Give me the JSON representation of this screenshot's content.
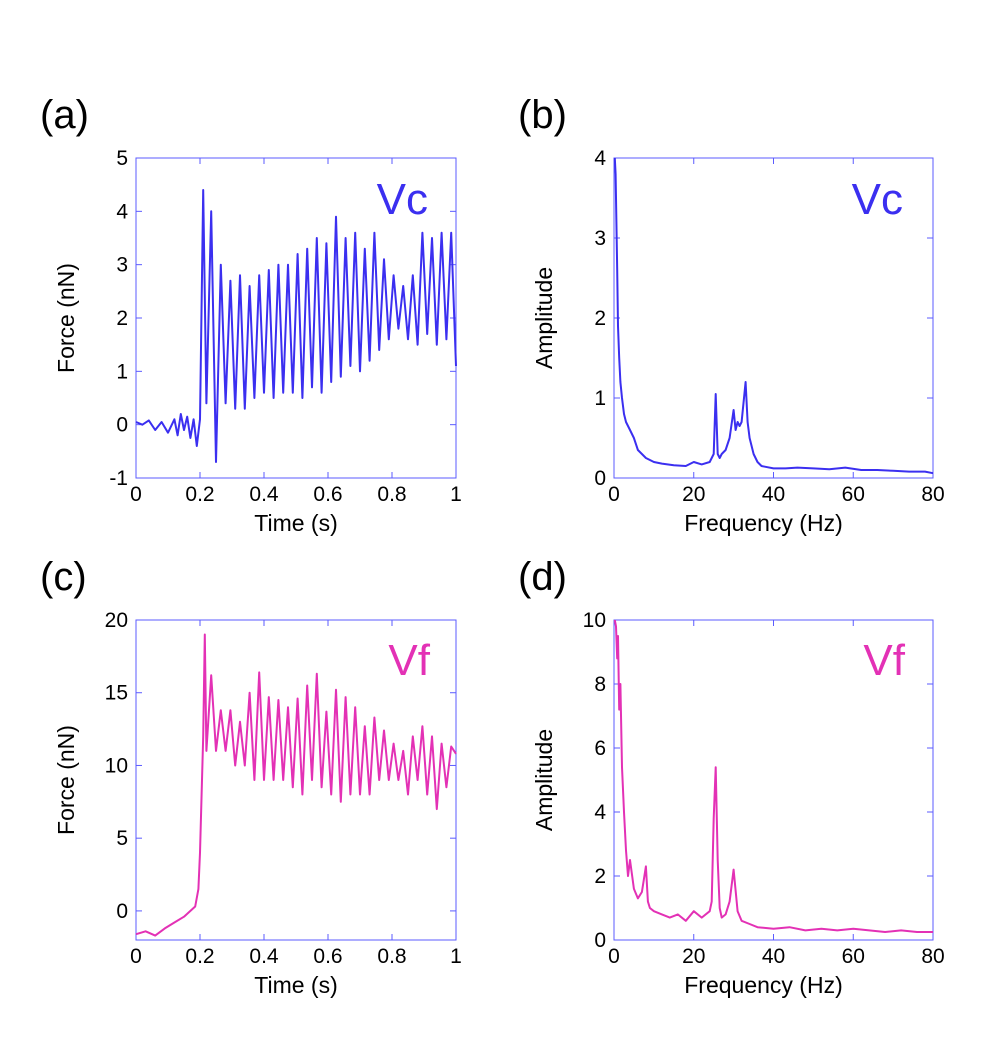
{
  "chart_data": [
    {
      "id": "a",
      "panel_label": "(a)",
      "type": "line",
      "color": "#3b2ff0",
      "tag": "Vc",
      "xlabel": "Time (s)",
      "ylabel": "Force (nN)",
      "xlim": [
        0,
        1
      ],
      "ylim": [
        -1,
        5
      ],
      "xticks": [
        0,
        0.2,
        0.4,
        0.6,
        0.8,
        1
      ],
      "xtick_labels": [
        "0",
        "0.2",
        "0.4",
        "0.6",
        "0.8",
        "1"
      ],
      "yticks": [
        -1,
        0,
        1,
        2,
        3,
        4,
        5
      ],
      "ytick_labels": [
        "-1",
        "0",
        "1",
        "2",
        "3",
        "4",
        "5"
      ],
      "x": [
        0,
        0.02,
        0.04,
        0.06,
        0.08,
        0.1,
        0.12,
        0.13,
        0.14,
        0.15,
        0.16,
        0.17,
        0.18,
        0.19,
        0.2,
        0.21,
        0.22,
        0.235,
        0.25,
        0.265,
        0.28,
        0.295,
        0.31,
        0.325,
        0.34,
        0.355,
        0.37,
        0.385,
        0.4,
        0.415,
        0.43,
        0.445,
        0.46,
        0.475,
        0.49,
        0.505,
        0.52,
        0.535,
        0.55,
        0.565,
        0.58,
        0.595,
        0.61,
        0.625,
        0.64,
        0.655,
        0.67,
        0.685,
        0.7,
        0.715,
        0.73,
        0.745,
        0.76,
        0.775,
        0.79,
        0.805,
        0.82,
        0.835,
        0.85,
        0.865,
        0.88,
        0.895,
        0.91,
        0.925,
        0.94,
        0.955,
        0.97,
        0.985,
        1.0
      ],
      "values": [
        0.05,
        0.0,
        0.08,
        -0.1,
        0.05,
        -0.15,
        0.1,
        -0.2,
        0.2,
        -0.1,
        0.15,
        -0.25,
        0.1,
        -0.4,
        0.1,
        4.4,
        0.4,
        4.0,
        -0.7,
        3.0,
        0.4,
        2.7,
        0.3,
        2.8,
        0.3,
        2.6,
        0.5,
        2.8,
        0.6,
        2.9,
        0.5,
        3.0,
        0.6,
        3.0,
        0.6,
        3.2,
        0.5,
        3.3,
        0.7,
        3.5,
        0.6,
        3.4,
        0.8,
        3.9,
        0.9,
        3.5,
        1.1,
        3.6,
        1.0,
        3.3,
        1.2,
        3.6,
        1.4,
        3.1,
        1.6,
        2.8,
        1.8,
        2.6,
        1.6,
        2.8,
        1.5,
        3.6,
        1.7,
        3.5,
        1.5,
        3.6,
        1.6,
        3.6,
        1.1
      ]
    },
    {
      "id": "b",
      "panel_label": "(b)",
      "type": "line",
      "color": "#3b2ff0",
      "tag": "Vc",
      "xlabel": "Frequency (Hz)",
      "ylabel": "Amplitude",
      "xlim": [
        0,
        80
      ],
      "ylim": [
        0,
        4
      ],
      "xticks": [
        0,
        20,
        40,
        60,
        80
      ],
      "xtick_labels": [
        "0",
        "20",
        "40",
        "60",
        "80"
      ],
      "yticks": [
        0,
        1,
        2,
        3,
        4
      ],
      "ytick_labels": [
        "0",
        "1",
        "2",
        "3",
        "4"
      ],
      "x": [
        0.2,
        0.4,
        0.6,
        0.8,
        1.0,
        1.3,
        1.6,
        2.0,
        2.5,
        3,
        4,
        5,
        6,
        8,
        10,
        12,
        15,
        18,
        20,
        22,
        24,
        25,
        25.5,
        26,
        26.5,
        27,
        28,
        29,
        30,
        30.5,
        31,
        31.5,
        32,
        32.5,
        33,
        33.5,
        34,
        35,
        36,
        37,
        38,
        40,
        43,
        46,
        50,
        54,
        58,
        62,
        66,
        70,
        74,
        78,
        80
      ],
      "values": [
        4.0,
        3.8,
        3.2,
        2.6,
        1.9,
        1.5,
        1.2,
        1.0,
        0.8,
        0.7,
        0.6,
        0.5,
        0.35,
        0.25,
        0.2,
        0.18,
        0.16,
        0.15,
        0.2,
        0.17,
        0.2,
        0.3,
        1.05,
        0.3,
        0.25,
        0.3,
        0.35,
        0.5,
        0.85,
        0.6,
        0.7,
        0.65,
        0.7,
        0.95,
        1.2,
        0.7,
        0.5,
        0.3,
        0.2,
        0.15,
        0.14,
        0.12,
        0.12,
        0.13,
        0.12,
        0.11,
        0.13,
        0.1,
        0.1,
        0.09,
        0.08,
        0.08,
        0.06
      ]
    },
    {
      "id": "c",
      "panel_label": "(c)",
      "type": "line",
      "color": "#e331b5",
      "tag": "Vf",
      "xlabel": "Time (s)",
      "ylabel": "Force (nN)",
      "xlim": [
        0,
        1
      ],
      "ylim": [
        -2,
        20
      ],
      "xticks": [
        0,
        0.2,
        0.4,
        0.6,
        0.8,
        1
      ],
      "xtick_labels": [
        "0",
        "0.2",
        "0.4",
        "0.6",
        "0.8",
        "1"
      ],
      "yticks": [
        0,
        5,
        10,
        15,
        20
      ],
      "ytick_labels": [
        "0",
        "5",
        "10",
        "15",
        "20"
      ],
      "x": [
        0,
        0.03,
        0.06,
        0.09,
        0.12,
        0.15,
        0.17,
        0.185,
        0.195,
        0.2,
        0.205,
        0.21,
        0.215,
        0.22,
        0.235,
        0.25,
        0.265,
        0.28,
        0.295,
        0.31,
        0.325,
        0.34,
        0.355,
        0.37,
        0.385,
        0.4,
        0.415,
        0.43,
        0.445,
        0.46,
        0.475,
        0.49,
        0.505,
        0.52,
        0.535,
        0.55,
        0.565,
        0.58,
        0.595,
        0.61,
        0.625,
        0.64,
        0.655,
        0.67,
        0.685,
        0.7,
        0.715,
        0.73,
        0.745,
        0.76,
        0.775,
        0.79,
        0.805,
        0.82,
        0.835,
        0.85,
        0.865,
        0.88,
        0.895,
        0.91,
        0.925,
        0.94,
        0.955,
        0.97,
        0.985,
        1.0
      ],
      "values": [
        -1.6,
        -1.4,
        -1.7,
        -1.2,
        -0.8,
        -0.4,
        0.0,
        0.3,
        1.5,
        4.0,
        8.0,
        12.0,
        19.0,
        11.0,
        16.2,
        11.0,
        13.8,
        11.0,
        13.8,
        10.0,
        13.0,
        10.0,
        15.0,
        9.0,
        16.4,
        9.0,
        14.7,
        9.0,
        14.5,
        9.0,
        14.0,
        8.5,
        14.6,
        8.0,
        15.5,
        9.0,
        16.3,
        8.5,
        13.7,
        8.0,
        15.2,
        7.5,
        14.7,
        8.0,
        14.0,
        8.0,
        12.7,
        8.0,
        13.3,
        9.0,
        12.4,
        9.0,
        11.5,
        9.0,
        11.0,
        8.0,
        12.0,
        9.0,
        12.7,
        8.0,
        12.0,
        7.0,
        11.5,
        8.5,
        11.3,
        10.8
      ]
    },
    {
      "id": "d",
      "panel_label": "(d)",
      "type": "line",
      "color": "#e331b5",
      "tag": "Vf",
      "xlabel": "Frequency (Hz)",
      "ylabel": "Amplitude",
      "xlim": [
        0,
        80
      ],
      "ylim": [
        0,
        10
      ],
      "xticks": [
        0,
        20,
        40,
        60,
        80
      ],
      "xtick_labels": [
        "0",
        "20",
        "40",
        "60",
        "80"
      ],
      "yticks": [
        0,
        2,
        4,
        6,
        8,
        10
      ],
      "ytick_labels": [
        "0",
        "2",
        "4",
        "6",
        "8",
        "10"
      ],
      "x": [
        0.2,
        0.5,
        0.8,
        1.0,
        1.3,
        1.6,
        2.0,
        2.5,
        3,
        3.5,
        4,
        5,
        6,
        7,
        8,
        8.5,
        9,
        10,
        12,
        14,
        16,
        18,
        20,
        22,
        24,
        24.5,
        25,
        25.5,
        26,
        26.5,
        27,
        28,
        29,
        30,
        31,
        32,
        34,
        36,
        40,
        44,
        48,
        52,
        56,
        60,
        64,
        68,
        72,
        76,
        80
      ],
      "values": [
        10.0,
        9.8,
        8.8,
        9.5,
        7.2,
        8.0,
        5.4,
        4.0,
        2.8,
        2.0,
        2.5,
        1.6,
        1.3,
        1.5,
        2.3,
        1.2,
        1.0,
        0.9,
        0.8,
        0.7,
        0.8,
        0.6,
        0.9,
        0.7,
        0.9,
        1.2,
        3.8,
        5.4,
        2.5,
        1.0,
        0.7,
        0.8,
        1.2,
        2.2,
        0.9,
        0.6,
        0.5,
        0.4,
        0.35,
        0.4,
        0.3,
        0.35,
        0.3,
        0.35,
        0.3,
        0.25,
        0.3,
        0.25,
        0.25
      ]
    }
  ]
}
